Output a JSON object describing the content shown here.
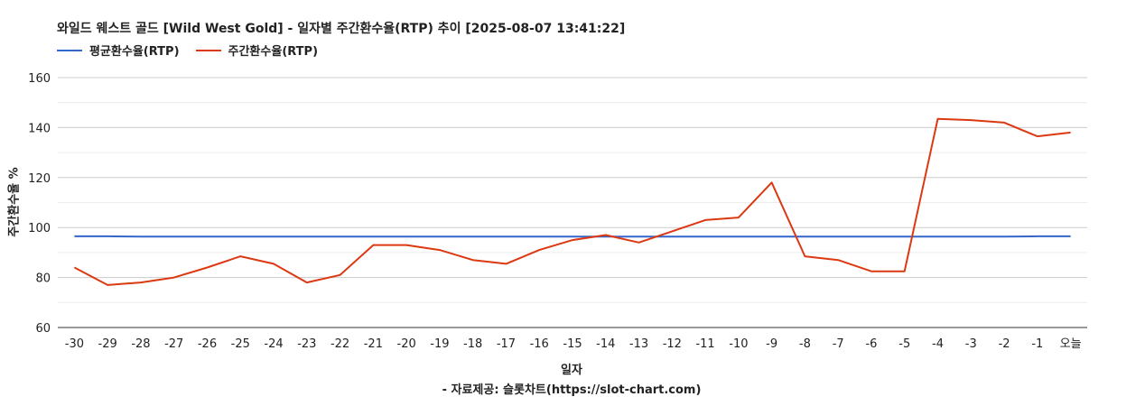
{
  "chart_data": {
    "type": "line",
    "title": "와일드 웨스트 골드 [Wild West Gold] - 일자별 주간환수율(RTP) 추이 [2025-08-07 13:41:22]",
    "xlabel": "일자",
    "ylabel": "주간환수율 %",
    "source": "- 자료제공: 슬롯차트(https://slot-chart.com)",
    "categories": [
      "-30",
      "-29",
      "-28",
      "-27",
      "-26",
      "-25",
      "-24",
      "-23",
      "-22",
      "-21",
      "-20",
      "-19",
      "-18",
      "-17",
      "-16",
      "-15",
      "-14",
      "-13",
      "-12",
      "-11",
      "-10",
      "-9",
      "-8",
      "-7",
      "-6",
      "-5",
      "-4",
      "-3",
      "-2",
      "-1",
      "오늘"
    ],
    "ylim": [
      60,
      160
    ],
    "yticks": [
      60,
      80,
      100,
      120,
      140,
      160
    ],
    "grid": true,
    "legend_position": "top-left",
    "series": [
      {
        "name": "평균환수율(RTP)",
        "color": "#3366cc",
        "values": [
          96.5,
          96.5,
          96.4,
          96.4,
          96.4,
          96.4,
          96.4,
          96.4,
          96.4,
          96.4,
          96.4,
          96.4,
          96.4,
          96.4,
          96.4,
          96.4,
          96.4,
          96.4,
          96.4,
          96.4,
          96.4,
          96.4,
          96.4,
          96.4,
          96.4,
          96.4,
          96.4,
          96.4,
          96.4,
          96.5,
          96.5
        ]
      },
      {
        "name": "주간환수율(RTP)",
        "color": "#dc3912",
        "values": [
          84,
          77,
          78,
          80,
          84,
          88.5,
          85.5,
          78,
          81,
          93,
          93,
          91,
          87,
          85.5,
          91,
          95,
          97,
          94,
          98.5,
          103,
          104,
          118,
          88.5,
          87,
          82.5,
          82.5,
          143.5,
          143,
          142,
          136.5,
          138
        ]
      }
    ]
  }
}
